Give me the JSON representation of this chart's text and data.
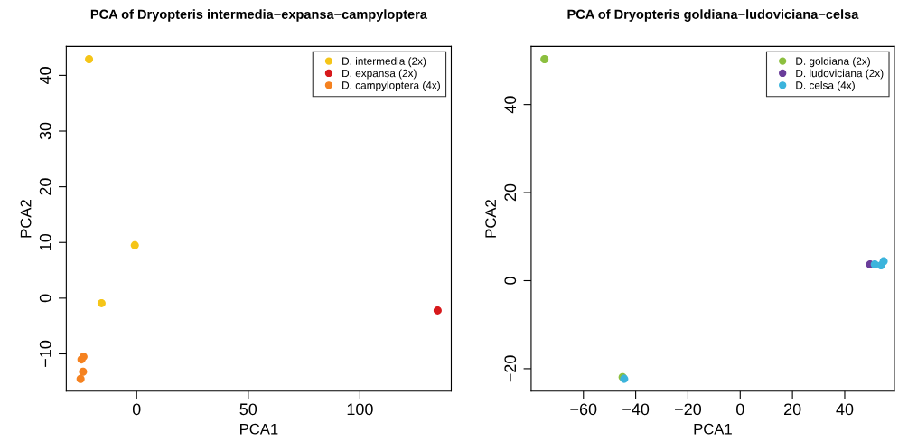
{
  "chart_data": [
    {
      "type": "scatter",
      "title": "PCA of Dryopteris intermedia−expansa−campyloptera",
      "xlabel": "PCA1",
      "ylabel": "PCA2",
      "xlim": [
        -31.5,
        140.9
      ],
      "ylim": [
        -16.7,
        45.2
      ],
      "xticks": [
        0,
        50,
        100
      ],
      "yticks": [
        {
          "value": -10,
          "label": "−10"
        },
        0,
        10,
        20,
        30,
        40
      ],
      "grid": false,
      "legend": "top right",
      "marker": "circle",
      "series": [
        {
          "name": "D. intermedia (2x)",
          "color": "#f5c518",
          "x": [
            -21.3,
            -0.8,
            -15.7
          ],
          "values": [
            42.9,
            9.5,
            -0.9
          ]
        },
        {
          "name": "D. expansa (2x)",
          "color": "#d7191c",
          "x": [
            134.8
          ],
          "values": [
            -2.2
          ]
        },
        {
          "name": "D. campyloptera (4x)",
          "color": "#f58220",
          "x": [
            -23.8,
            -24.7,
            -24.0,
            -25.1
          ],
          "values": [
            -10.5,
            -11.0,
            -13.2,
            -14.5
          ]
        }
      ]
    },
    {
      "type": "scatter",
      "title": "PCA of Dryopteris goldiana−ludoviciana−celsa",
      "xlabel": "PCA1",
      "ylabel": "PCA2",
      "xlim": [
        -80,
        59
      ],
      "ylim": [
        -25.1,
        53.2
      ],
      "xticks": [
        {
          "value": -60,
          "label": "−60"
        },
        {
          "value": -40,
          "label": "−40"
        },
        {
          "value": -20,
          "label": "−20"
        },
        0,
        20,
        40
      ],
      "yticks": [
        {
          "value": -20,
          "label": "−20"
        },
        0,
        20,
        40
      ],
      "grid": false,
      "legend": "top right",
      "marker": "circle",
      "series": [
        {
          "name": "D. goldiana (2x)",
          "color": "#8cbf3f",
          "x": [
            -74.9,
            -45.0
          ],
          "values": [
            50.3,
            -21.9
          ]
        },
        {
          "name": "D. ludoviciana (2x)",
          "color": "#6a3d9a",
          "x": [
            49.7
          ],
          "values": [
            3.7
          ]
        },
        {
          "name": "D. celsa (4x)",
          "color": "#3cb4dc",
          "x": [
            -44.4,
            51.5,
            53.9,
            54.9
          ],
          "values": [
            -22.3,
            3.7,
            3.5,
            4.4
          ]
        }
      ]
    }
  ]
}
